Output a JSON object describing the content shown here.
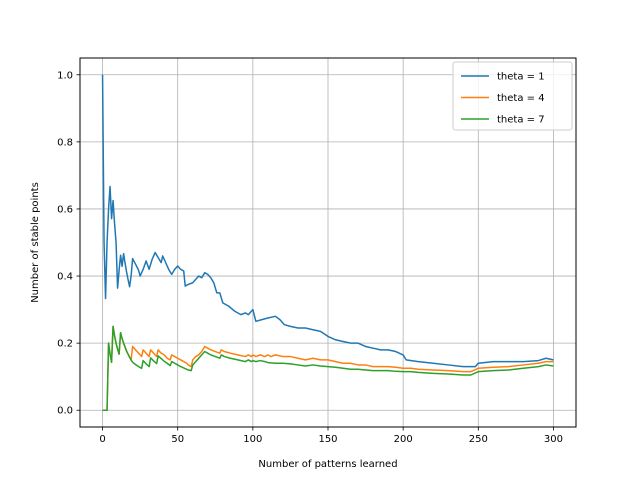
{
  "chart_data": {
    "type": "line",
    "title": "",
    "xlabel": "Number of patterns learned",
    "ylabel": "Number of stable points",
    "xlim": [
      -15,
      315
    ],
    "ylim": [
      -0.05,
      1.05
    ],
    "xticks": [
      0,
      50,
      100,
      150,
      200,
      250,
      300
    ],
    "xtick_labels": [
      "0",
      "50",
      "100",
      "150",
      "200",
      "250",
      "300"
    ],
    "yticks": [
      0.0,
      0.2,
      0.4,
      0.6,
      0.8,
      1.0
    ],
    "ytick_labels": [
      "0.0",
      "0.2",
      "0.4",
      "0.6",
      "0.8",
      "1.0"
    ],
    "grid": true,
    "legend_position": "top-right",
    "series": [
      {
        "name": "theta = 1",
        "color": "#1f77b4",
        "points": [
          [
            0,
            1.0
          ],
          [
            1,
            0.5
          ],
          [
            2,
            0.333
          ],
          [
            3,
            0.5
          ],
          [
            4,
            0.6
          ],
          [
            5,
            0.667
          ],
          [
            6,
            0.571
          ],
          [
            7,
            0.625
          ],
          [
            8,
            0.556
          ],
          [
            9,
            0.5
          ],
          [
            10,
            0.364
          ],
          [
            11,
            0.417
          ],
          [
            12,
            0.462
          ],
          [
            13,
            0.429
          ],
          [
            14,
            0.467
          ],
          [
            15,
            0.438
          ],
          [
            16,
            0.412
          ],
          [
            17,
            0.389
          ],
          [
            18,
            0.368
          ],
          [
            19,
            0.4
          ],
          [
            20,
            0.452
          ],
          [
            22,
            0.435
          ],
          [
            24,
            0.417
          ],
          [
            25,
            0.4
          ],
          [
            27,
            0.42
          ],
          [
            29,
            0.445
          ],
          [
            31,
            0.42
          ],
          [
            33,
            0.45
          ],
          [
            35,
            0.47
          ],
          [
            37,
            0.455
          ],
          [
            39,
            0.44
          ],
          [
            40,
            0.46
          ],
          [
            42,
            0.44
          ],
          [
            44,
            0.42
          ],
          [
            46,
            0.405
          ],
          [
            48,
            0.42
          ],
          [
            50,
            0.43
          ],
          [
            52,
            0.42
          ],
          [
            54,
            0.415
          ],
          [
            55,
            0.37
          ],
          [
            57,
            0.375
          ],
          [
            60,
            0.38
          ],
          [
            62,
            0.39
          ],
          [
            64,
            0.4
          ],
          [
            66,
            0.395
          ],
          [
            68,
            0.41
          ],
          [
            70,
            0.405
          ],
          [
            72,
            0.395
          ],
          [
            74,
            0.38
          ],
          [
            76,
            0.35
          ],
          [
            78,
            0.35
          ],
          [
            80,
            0.32
          ],
          [
            84,
            0.31
          ],
          [
            88,
            0.295
          ],
          [
            92,
            0.285
          ],
          [
            95,
            0.29
          ],
          [
            97,
            0.285
          ],
          [
            100,
            0.3
          ],
          [
            102,
            0.265
          ],
          [
            106,
            0.27
          ],
          [
            110,
            0.275
          ],
          [
            115,
            0.28
          ],
          [
            118,
            0.27
          ],
          [
            121,
            0.255
          ],
          [
            125,
            0.25
          ],
          [
            130,
            0.245
          ],
          [
            135,
            0.245
          ],
          [
            140,
            0.24
          ],
          [
            145,
            0.235
          ],
          [
            150,
            0.22
          ],
          [
            155,
            0.21
          ],
          [
            160,
            0.205
          ],
          [
            165,
            0.2
          ],
          [
            170,
            0.2
          ],
          [
            175,
            0.19
          ],
          [
            180,
            0.185
          ],
          [
            185,
            0.18
          ],
          [
            190,
            0.18
          ],
          [
            195,
            0.175
          ],
          [
            200,
            0.165
          ],
          [
            202,
            0.15
          ],
          [
            210,
            0.145
          ],
          [
            220,
            0.14
          ],
          [
            230,
            0.135
          ],
          [
            240,
            0.13
          ],
          [
            248,
            0.13
          ],
          [
            250,
            0.14
          ],
          [
            260,
            0.145
          ],
          [
            270,
            0.145
          ],
          [
            280,
            0.145
          ],
          [
            290,
            0.148
          ],
          [
            295,
            0.155
          ],
          [
            300,
            0.15
          ]
        ]
      },
      {
        "name": "theta = 4",
        "color": "#ff7f0e",
        "points": [
          [
            0,
            0.0
          ],
          [
            1,
            0.0
          ],
          [
            2,
            0.0
          ],
          [
            3,
            0.0
          ],
          [
            4,
            0.2
          ],
          [
            5,
            0.167
          ],
          [
            6,
            0.143
          ],
          [
            7,
            0.25
          ],
          [
            8,
            0.222
          ],
          [
            9,
            0.2
          ],
          [
            10,
            0.182
          ],
          [
            11,
            0.167
          ],
          [
            12,
            0.231
          ],
          [
            13,
            0.214
          ],
          [
            14,
            0.2
          ],
          [
            15,
            0.188
          ],
          [
            16,
            0.176
          ],
          [
            17,
            0.167
          ],
          [
            18,
            0.158
          ],
          [
            19,
            0.15
          ],
          [
            20,
            0.19
          ],
          [
            22,
            0.18
          ],
          [
            24,
            0.17
          ],
          [
            26,
            0.16
          ],
          [
            27,
            0.18
          ],
          [
            29,
            0.17
          ],
          [
            31,
            0.16
          ],
          [
            32,
            0.18
          ],
          [
            34,
            0.17
          ],
          [
            36,
            0.16
          ],
          [
            37,
            0.18
          ],
          [
            39,
            0.17
          ],
          [
            41,
            0.165
          ],
          [
            43,
            0.155
          ],
          [
            45,
            0.15
          ],
          [
            46,
            0.165
          ],
          [
            48,
            0.16
          ],
          [
            50,
            0.155
          ],
          [
            52,
            0.15
          ],
          [
            54,
            0.145
          ],
          [
            56,
            0.14
          ],
          [
            57,
            0.135
          ],
          [
            59,
            0.13
          ],
          [
            60,
            0.15
          ],
          [
            62,
            0.16
          ],
          [
            64,
            0.165
          ],
          [
            66,
            0.175
          ],
          [
            68,
            0.19
          ],
          [
            70,
            0.185
          ],
          [
            72,
            0.18
          ],
          [
            75,
            0.175
          ],
          [
            78,
            0.17
          ],
          [
            79,
            0.18
          ],
          [
            81,
            0.175
          ],
          [
            85,
            0.17
          ],
          [
            90,
            0.165
          ],
          [
            95,
            0.16
          ],
          [
            97,
            0.165
          ],
          [
            99,
            0.16
          ],
          [
            100,
            0.165
          ],
          [
            102,
            0.16
          ],
          [
            105,
            0.165
          ],
          [
            108,
            0.16
          ],
          [
            110,
            0.165
          ],
          [
            112,
            0.16
          ],
          [
            115,
            0.165
          ],
          [
            120,
            0.16
          ],
          [
            125,
            0.16
          ],
          [
            130,
            0.155
          ],
          [
            135,
            0.15
          ],
          [
            140,
            0.155
          ],
          [
            145,
            0.15
          ],
          [
            150,
            0.15
          ],
          [
            155,
            0.145
          ],
          [
            160,
            0.14
          ],
          [
            165,
            0.14
          ],
          [
            170,
            0.135
          ],
          [
            175,
            0.135
          ],
          [
            180,
            0.13
          ],
          [
            185,
            0.13
          ],
          [
            190,
            0.13
          ],
          [
            195,
            0.128
          ],
          [
            200,
            0.125
          ],
          [
            205,
            0.125
          ],
          [
            210,
            0.122
          ],
          [
            220,
            0.12
          ],
          [
            230,
            0.118
          ],
          [
            240,
            0.115
          ],
          [
            245,
            0.115
          ],
          [
            250,
            0.125
          ],
          [
            260,
            0.128
          ],
          [
            270,
            0.13
          ],
          [
            280,
            0.135
          ],
          [
            290,
            0.14
          ],
          [
            295,
            0.145
          ],
          [
            300,
            0.145
          ]
        ]
      },
      {
        "name": "theta = 7",
        "color": "#2ca02c",
        "points": [
          [
            0,
            0.0
          ],
          [
            1,
            0.0
          ],
          [
            2,
            0.0
          ],
          [
            3,
            0.0
          ],
          [
            4,
            0.2
          ],
          [
            5,
            0.167
          ],
          [
            6,
            0.143
          ],
          [
            7,
            0.25
          ],
          [
            8,
            0.222
          ],
          [
            9,
            0.2
          ],
          [
            10,
            0.182
          ],
          [
            11,
            0.167
          ],
          [
            12,
            0.231
          ],
          [
            13,
            0.214
          ],
          [
            14,
            0.2
          ],
          [
            15,
            0.188
          ],
          [
            16,
            0.176
          ],
          [
            17,
            0.167
          ],
          [
            18,
            0.158
          ],
          [
            19,
            0.15
          ],
          [
            20,
            0.143
          ],
          [
            22,
            0.136
          ],
          [
            24,
            0.13
          ],
          [
            26,
            0.125
          ],
          [
            27,
            0.148
          ],
          [
            29,
            0.138
          ],
          [
            31,
            0.13
          ],
          [
            32,
            0.156
          ],
          [
            34,
            0.147
          ],
          [
            36,
            0.139
          ],
          [
            37,
            0.162
          ],
          [
            39,
            0.154
          ],
          [
            41,
            0.146
          ],
          [
            43,
            0.14
          ],
          [
            45,
            0.133
          ],
          [
            46,
            0.145
          ],
          [
            48,
            0.14
          ],
          [
            50,
            0.135
          ],
          [
            52,
            0.13
          ],
          [
            54,
            0.126
          ],
          [
            56,
            0.122
          ],
          [
            57,
            0.12
          ],
          [
            59,
            0.118
          ],
          [
            60,
            0.135
          ],
          [
            62,
            0.145
          ],
          [
            64,
            0.155
          ],
          [
            66,
            0.165
          ],
          [
            68,
            0.175
          ],
          [
            70,
            0.17
          ],
          [
            72,
            0.165
          ],
          [
            75,
            0.16
          ],
          [
            78,
            0.155
          ],
          [
            79,
            0.165
          ],
          [
            81,
            0.16
          ],
          [
            85,
            0.155
          ],
          [
            90,
            0.15
          ],
          [
            95,
            0.145
          ],
          [
            97,
            0.15
          ],
          [
            99,
            0.145
          ],
          [
            100,
            0.148
          ],
          [
            102,
            0.145
          ],
          [
            105,
            0.148
          ],
          [
            108,
            0.145
          ],
          [
            110,
            0.142
          ],
          [
            115,
            0.14
          ],
          [
            120,
            0.14
          ],
          [
            125,
            0.138
          ],
          [
            130,
            0.135
          ],
          [
            135,
            0.132
          ],
          [
            140,
            0.135
          ],
          [
            145,
            0.132
          ],
          [
            150,
            0.13
          ],
          [
            155,
            0.128
          ],
          [
            160,
            0.125
          ],
          [
            165,
            0.122
          ],
          [
            170,
            0.122
          ],
          [
            175,
            0.12
          ],
          [
            180,
            0.118
          ],
          [
            185,
            0.118
          ],
          [
            190,
            0.118
          ],
          [
            195,
            0.116
          ],
          [
            200,
            0.115
          ],
          [
            205,
            0.115
          ],
          [
            210,
            0.113
          ],
          [
            220,
            0.11
          ],
          [
            230,
            0.108
          ],
          [
            240,
            0.105
          ],
          [
            245,
            0.105
          ],
          [
            250,
            0.115
          ],
          [
            260,
            0.118
          ],
          [
            270,
            0.12
          ],
          [
            280,
            0.125
          ],
          [
            290,
            0.13
          ],
          [
            295,
            0.135
          ],
          [
            300,
            0.132
          ]
        ]
      }
    ]
  }
}
